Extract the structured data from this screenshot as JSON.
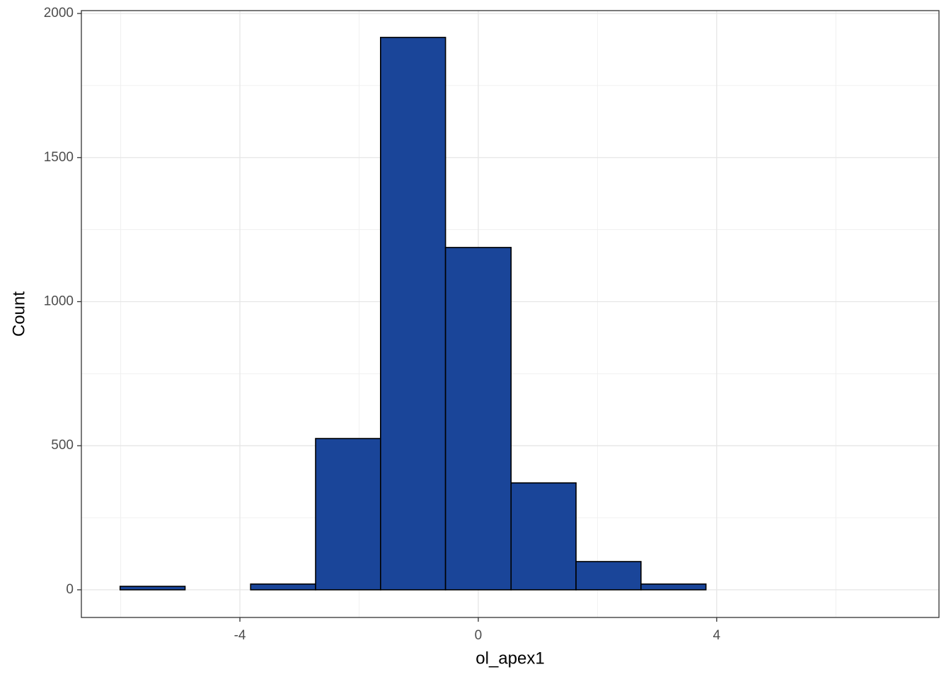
{
  "chart_data": {
    "type": "histogram",
    "x_label": "ol_apex1",
    "y_label": "Count",
    "bins": [
      -6.01,
      -4.92,
      -3.82,
      -2.73,
      -1.64,
      -0.55,
      0.55,
      1.64,
      2.73,
      3.82,
      4.92,
      6.01,
      7.1
    ],
    "values": [
      12,
      0,
      20,
      525,
      1917,
      1188,
      371,
      98,
      20,
      0,
      0,
      0
    ],
    "color": "#1a4599",
    "xlim": [
      -6.66,
      7.73
    ],
    "xticks": [
      -4,
      0,
      4
    ],
    "ylim": [
      -96,
      2010
    ],
    "yticks": [
      0,
      500,
      1000,
      1500,
      2000
    ],
    "grid": true
  }
}
